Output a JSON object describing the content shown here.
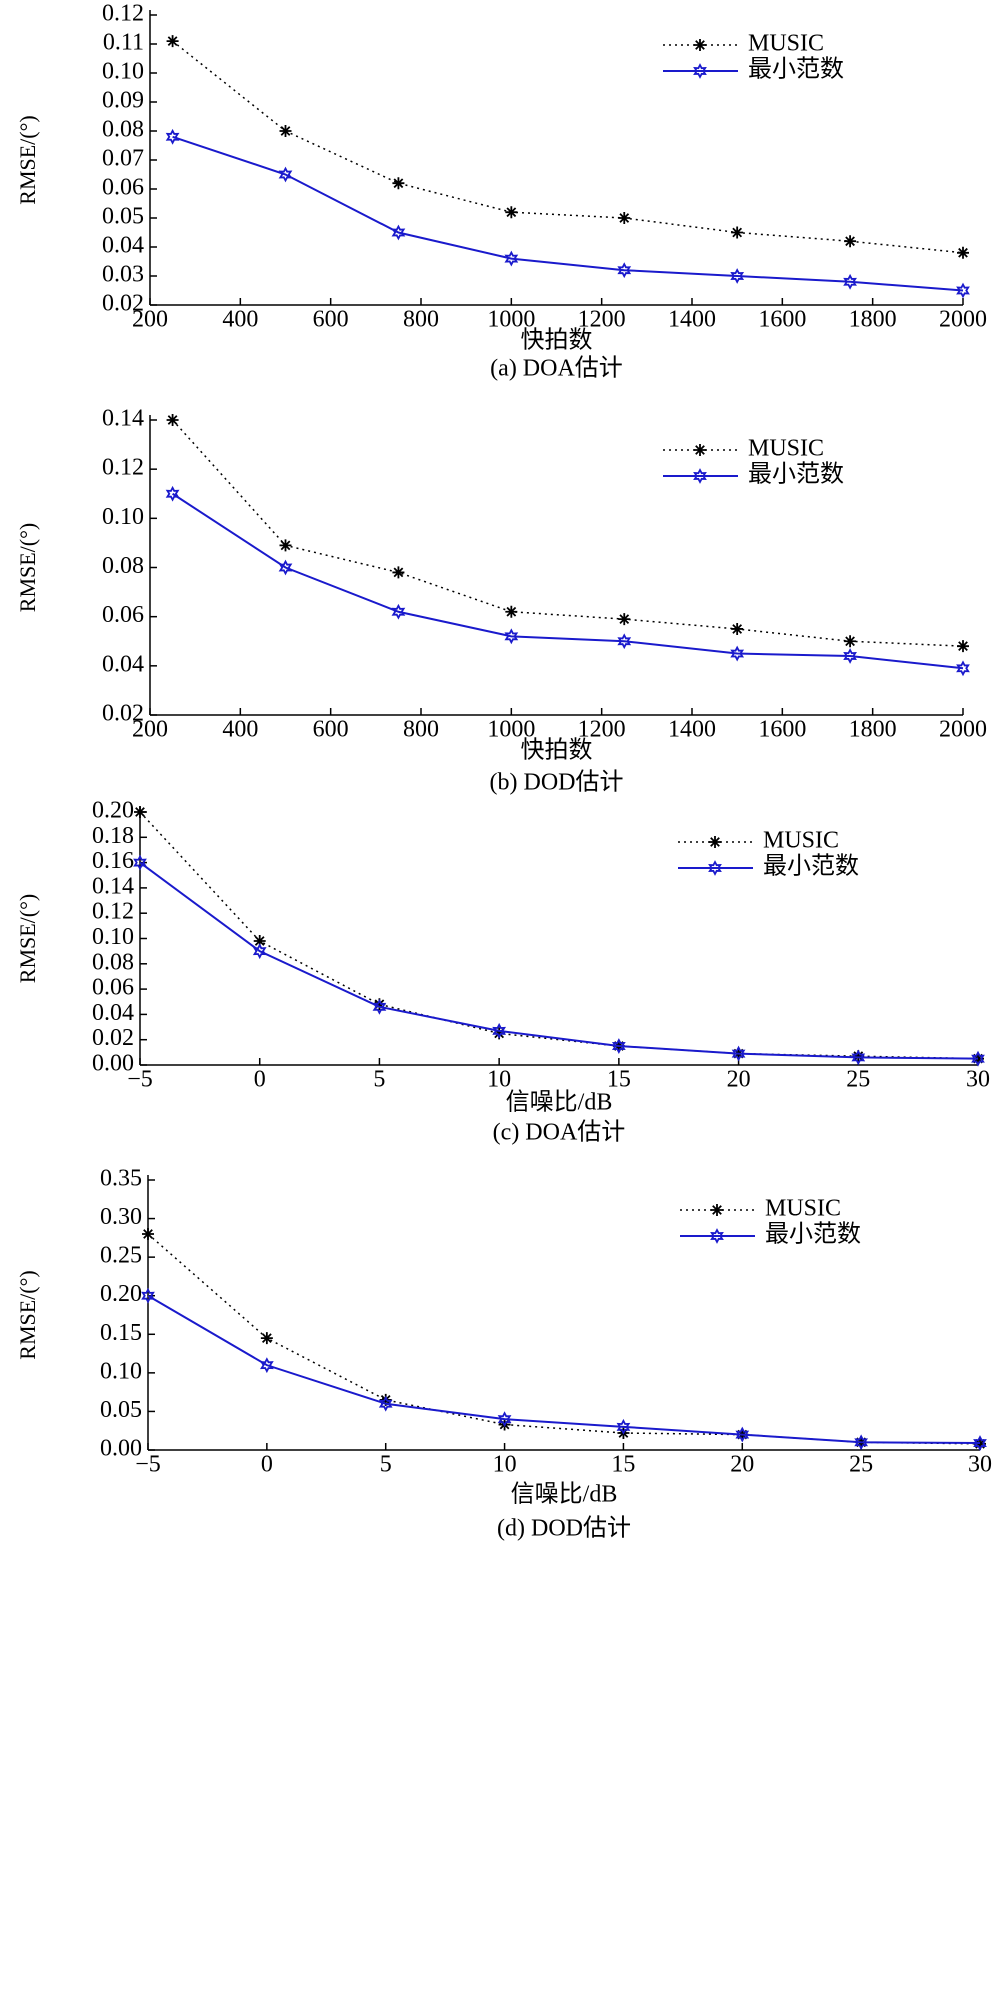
{
  "chart_data": [
    {
      "type": "line",
      "xlabel": "快拍数",
      "ylabel": "RMSE/(°)",
      "caption": "(a) DOA估计",
      "x": [
        250,
        500,
        750,
        1000,
        1250,
        1500,
        1750,
        2000
      ],
      "series": [
        {
          "name": "MUSIC",
          "color": "#000000",
          "values": [
            0.111,
            0.08,
            0.062,
            0.052,
            0.05,
            0.045,
            0.042,
            0.038
          ]
        },
        {
          "name": "最小范数",
          "color": "#1a1acc",
          "values": [
            0.078,
            0.065,
            0.045,
            0.036,
            0.032,
            0.03,
            0.028,
            0.025
          ]
        }
      ],
      "xlim": [
        200,
        2000
      ],
      "xticks": [
        200,
        400,
        600,
        800,
        1000,
        1200,
        1400,
        1600,
        1800,
        2000
      ],
      "ylim": [
        0.02,
        0.12
      ],
      "yticks": [
        0.02,
        0.03,
        0.04,
        0.05,
        0.06,
        0.07,
        0.08,
        0.09,
        {
          "value": 0.1,
          "label": "0.10"
        },
        0.11,
        0.12
      ],
      "legend": "upper right"
    },
    {
      "type": "line",
      "xlabel": "快拍数",
      "ylabel": "RMSE/(°)",
      "caption": "(b) DOD估计",
      "x": [
        250,
        500,
        750,
        1000,
        1250,
        1500,
        1750,
        2000
      ],
      "series": [
        {
          "name": "MUSIC",
          "color": "#000000",
          "values": [
            0.14,
            0.089,
            0.078,
            0.062,
            0.059,
            0.055,
            0.05,
            0.048
          ]
        },
        {
          "name": "最小范数",
          "color": "#1a1acc",
          "values": [
            0.11,
            0.08,
            0.062,
            0.052,
            0.05,
            0.045,
            0.044,
            0.039
          ]
        }
      ],
      "xlim": [
        200,
        2000
      ],
      "xticks": [
        200,
        400,
        600,
        800,
        1000,
        1200,
        1400,
        1600,
        1800,
        2000
      ],
      "ylim": [
        0.02,
        0.14
      ],
      "yticks": [
        0.02,
        0.04,
        0.06,
        0.08,
        {
          "value": 0.1,
          "label": "0.10"
        },
        0.12,
        0.14
      ],
      "legend": "upper right"
    },
    {
      "type": "line",
      "xlabel": "信噪比/dB",
      "ylabel": "RMSE/(°)",
      "caption": "(c) DOA估计",
      "x": [
        -5,
        0,
        5,
        10,
        15,
        20,
        25,
        30
      ],
      "series": [
        {
          "name": "MUSIC",
          "color": "#000000",
          "values": [
            0.2,
            0.098,
            0.048,
            0.025,
            0.015,
            0.009,
            0.007,
            0.005
          ]
        },
        {
          "name": "最小范数",
          "color": "#1a1acc",
          "values": [
            0.16,
            0.09,
            0.046,
            0.027,
            0.015,
            0.009,
            0.006,
            0.005
          ]
        }
      ],
      "xlim": [
        -5,
        30
      ],
      "xticks": [
        {
          "value": -5,
          "label": "−5"
        },
        0,
        5,
        10,
        15,
        20,
        25,
        30
      ],
      "ylim": [
        0,
        0.2
      ],
      "yticks": [
        {
          "value": 0,
          "label": "0.00"
        },
        0.02,
        0.04,
        0.06,
        0.08,
        {
          "value": 0.1,
          "label": "0.10"
        },
        0.12,
        0.14,
        0.16,
        0.18,
        {
          "value": 0.2,
          "label": "0.20"
        }
      ],
      "legend": "upper right"
    },
    {
      "type": "line",
      "xlabel": "信噪比/dB",
      "ylabel": "RMSE/(°)",
      "caption": "(d) DOD估计",
      "x": [
        -5,
        0,
        5,
        10,
        15,
        20,
        25,
        30
      ],
      "series": [
        {
          "name": "MUSIC",
          "color": "#000000",
          "values": [
            0.28,
            0.145,
            0.065,
            0.033,
            0.022,
            0.02,
            0.01,
            0.008
          ]
        },
        {
          "name": "最小范数",
          "color": "#1a1acc",
          "values": [
            0.2,
            0.11,
            0.06,
            0.04,
            0.03,
            0.02,
            0.01,
            0.009
          ]
        }
      ],
      "xlim": [
        -5,
        30
      ],
      "xticks": [
        {
          "value": -5,
          "label": "−5"
        },
        0,
        5,
        10,
        15,
        20,
        25,
        30
      ],
      "ylim": [
        0,
        0.35
      ],
      "yticks": [
        {
          "value": 0,
          "label": "0.00"
        },
        0.05,
        {
          "value": 0.1,
          "label": "0.10"
        },
        0.15,
        {
          "value": 0.2,
          "label": "0.20"
        },
        0.25,
        {
          "value": 0.3,
          "label": "0.30"
        },
        0.35
      ],
      "legend": "upper right"
    }
  ]
}
